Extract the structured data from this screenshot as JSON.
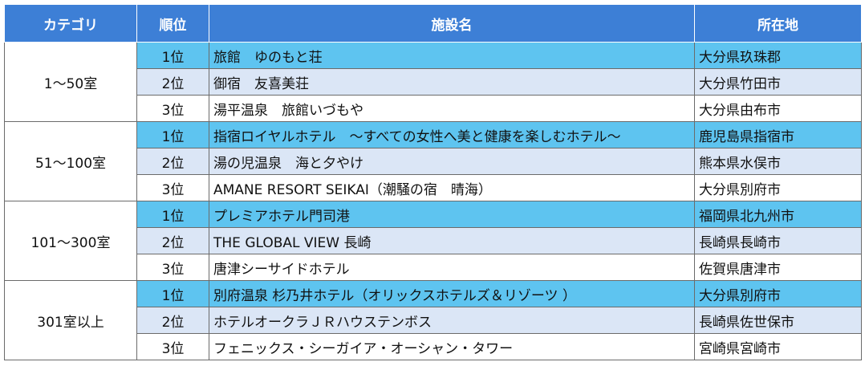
{
  "table": {
    "header": [
      "カテゴリ",
      "順位",
      "施設名",
      "所在地"
    ],
    "groups": [
      {
        "category": "1～50室",
        "rows": [
          [
            "1位",
            "旅館　ゆのもと荘",
            "大分県玖珠郡"
          ],
          [
            "2位",
            "御宿　友喜美荘",
            "大分県竹田市"
          ],
          [
            "3位",
            "湯平温泉　旅館いづもや",
            "大分県由布市"
          ]
        ]
      },
      {
        "category": "51～100室",
        "rows": [
          [
            "1位",
            "指宿ロイヤルホテル　～すべての女性へ美と健康を楽しむホテル～",
            "鹿児島県指宿市"
          ],
          [
            "2位",
            "湯の児温泉　海と夕やけ",
            "熊本県水俣市"
          ],
          [
            "3位",
            "AMANE RESORT SEIKAI（潮騒の宿　晴海）",
            "大分県別府市"
          ]
        ]
      },
      {
        "category": "101～300室",
        "rows": [
          [
            "1位",
            "プレミアホテル門司港",
            "福岡県北九州市"
          ],
          [
            "2位",
            "THE GLOBAL VIEW 長崎",
            "長崎県長崎市"
          ],
          [
            "3位",
            "唐津シーサイドホテル",
            "佐賀県唐津市"
          ]
        ]
      },
      {
        "category": "301室以上",
        "rows": [
          [
            "1位",
            "別府温泉 杉乃井ホテル（オリックスホテルズ＆リゾーツ ）",
            "大分県別府市"
          ],
          [
            "2位",
            "ホテルオークラＪＲハウステンボス",
            "長崎県佐世保市"
          ],
          [
            "3位",
            "フェニックス・シーガイア・オーシャン・タワー",
            "宮崎県宮崎市"
          ]
        ]
      }
    ]
  }
}
